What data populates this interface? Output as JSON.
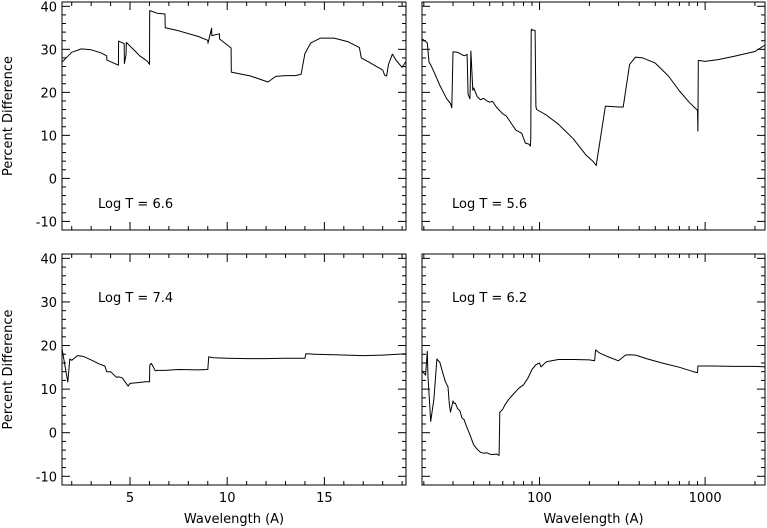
{
  "chart_data": [
    {
      "type": "line",
      "panel": "top-left",
      "annotation": "Log T = 6.6",
      "xlabel": "",
      "ylabel": "Percent Difference",
      "xscale": "linear",
      "xlim": [
        1.5,
        19.2
      ],
      "ylim": [
        -12,
        41
      ],
      "xticks": [],
      "yticks": [
        -10,
        0,
        10,
        20,
        30,
        40
      ],
      "series": [
        {
          "x": [
            1.5,
            2.0,
            2.5,
            3.0,
            3.5,
            3.8,
            3.81,
            4.4,
            4.41,
            4.7,
            4.71,
            4.8,
            4.81,
            5.3,
            5.5,
            5.9,
            6.0,
            6.01,
            6.4,
            6.8,
            6.81,
            7.5,
            8.5,
            9.0,
            9.01,
            9.2,
            9.21,
            9.6,
            9.61,
            10.2,
            10.21,
            11.2,
            12.1,
            12.5,
            13.0,
            13.5,
            13.8,
            14.0,
            14.3,
            14.8,
            15.5,
            16.2,
            16.8,
            16.9,
            17.3,
            17.8,
            18.0,
            18.1,
            18.2,
            18.3,
            18.5,
            18.7,
            19.0,
            19.2
          ],
          "y": [
            27,
            29.3,
            30.1,
            29.9,
            29.2,
            28.5,
            27.5,
            26.3,
            31.9,
            31.3,
            26.7,
            28.8,
            31.6,
            29.4,
            28.5,
            27.2,
            26.5,
            39,
            38.4,
            38.2,
            35,
            34.3,
            33.0,
            32.1,
            31.4,
            34.9,
            33.2,
            33.6,
            32.4,
            30.3,
            24.7,
            23.8,
            22.4,
            23.7,
            23.9,
            23.9,
            24.2,
            29,
            31.5,
            32.6,
            32.6,
            31.8,
            30.4,
            28.0,
            27.0,
            25.7,
            25.2,
            24.0,
            23.8,
            26.5,
            28.9,
            27.4,
            25.8,
            27.2
          ]
        }
      ]
    },
    {
      "type": "line",
      "panel": "top-right",
      "annotation": "Log T = 5.6",
      "xlabel": "",
      "ylabel": "",
      "xscale": "log",
      "xlim": [
        19.5,
        2300
      ],
      "ylim": [
        -12,
        41
      ],
      "xticks": [],
      "yticks": [],
      "series": [
        {
          "x": [
            19.5,
            20.5,
            21.0,
            21.5,
            22.0,
            23.0,
            25.0,
            27.5,
            29.0,
            29.5,
            30.0,
            32.0,
            35.0,
            36.5,
            37.0,
            38.0,
            38.5,
            39.5,
            40.0,
            42.0,
            44.0,
            46.0,
            48.0,
            50.0,
            52.0,
            55.0,
            60.0,
            63.0,
            67.0,
            72.0,
            78.0,
            82.0,
            86.0,
            88.0,
            88.5,
            89.0,
            89.5,
            90.0,
            94.0,
            95.0,
            96.0,
            110.0,
            130.0,
            160.0,
            190.0,
            210.0,
            220.0,
            250.0,
            300.0,
            320.0,
            350.0,
            380.0,
            420.0,
            500.0,
            600.0,
            700.0,
            800.0,
            900.0,
            905.0,
            910.0,
            920.0,
            1000.0,
            1200.0,
            1500.0,
            2000.0,
            2300.0
          ],
          "y": [
            32.5,
            31.8,
            31.5,
            27,
            26.4,
            24.8,
            21.6,
            18.5,
            17.4,
            16.4,
            29.4,
            29.3,
            28.5,
            28.8,
            19.5,
            18.5,
            29.6,
            20.5,
            21.0,
            19.0,
            18.3,
            18.6,
            18.0,
            17.7,
            17.9,
            16.5,
            15.0,
            14.5,
            13.0,
            11.2,
            10.5,
            8.2,
            8.0,
            7.5,
            9.5,
            34.5,
            34.7,
            34.5,
            34.4,
            16.7,
            16.0,
            14.7,
            12.6,
            9.2,
            5.5,
            4.0,
            3.0,
            16.8,
            16.6,
            16.6,
            26.5,
            28.2,
            28.0,
            26.8,
            23.8,
            20.3,
            17.7,
            15.8,
            11.0,
            27.4,
            27.4,
            27.2,
            27.6,
            28.4,
            29.5,
            31.0
          ]
        }
      ]
    },
    {
      "type": "line",
      "panel": "bottom-left",
      "annotation": "Log T = 7.4",
      "xlabel": "Wavelength (A)",
      "ylabel": "Percent Difference",
      "xscale": "linear",
      "xlim": [
        1.5,
        19.2
      ],
      "ylim": [
        -12,
        41
      ],
      "xticks": [
        5,
        10,
        15
      ],
      "yticks": [
        -10,
        0,
        10,
        20,
        30,
        40
      ],
      "series": [
        {
          "x": [
            1.5,
            1.8,
            1.9,
            2.0,
            2.3,
            2.6,
            3.0,
            3.4,
            3.7,
            3.8,
            4.0,
            4.3,
            4.4,
            4.5,
            4.6,
            4.9,
            5.0,
            5.4,
            5.8,
            6.0,
            6.02,
            6.1,
            6.3,
            6.4,
            6.8,
            7.5,
            8.5,
            9.0,
            9.05,
            9.3,
            10.0,
            11.0,
            12.0,
            13.0,
            14.0,
            14.05,
            14.5,
            15.5,
            17.0,
            18.0,
            19.2
          ],
          "y": [
            19.3,
            11.6,
            16.9,
            16.6,
            17.7,
            17.5,
            16.7,
            15.8,
            15.3,
            14.0,
            14.0,
            12.7,
            12.8,
            12.7,
            12.6,
            10.7,
            11.3,
            11.5,
            11.7,
            11.7,
            15.5,
            15.9,
            14.2,
            14.3,
            14.3,
            14.5,
            14.4,
            14.5,
            17.4,
            17.2,
            17.1,
            17.0,
            17.0,
            17.1,
            17.1,
            18.1,
            18.0,
            17.9,
            17.7,
            17.8,
            18.1
          ]
        }
      ]
    },
    {
      "type": "line",
      "panel": "bottom-right",
      "annotation": "Log T = 6.2",
      "xlabel": "Wavelength (A)",
      "ylabel": "",
      "xscale": "log",
      "xlim": [
        19.5,
        2300
      ],
      "ylim": [
        -12,
        41
      ],
      "xticks": [
        100,
        1000
      ],
      "xticklabels": [
        "100",
        "1000"
      ],
      "yticks": [],
      "series": [
        {
          "x": [
            19.5,
            20.5,
            21.0,
            21.2,
            22.0,
            23.0,
            24.0,
            25.0,
            26.0,
            27.0,
            28.0,
            28.5,
            29.0,
            29.5,
            30.0,
            30.5,
            31.0,
            32.0,
            33.0,
            34.0,
            35.0,
            36.0,
            38.0,
            40.0,
            42.0,
            44.0,
            46.0,
            48.0,
            50.0,
            52.0,
            55.0,
            57.0,
            57.5,
            58.0,
            60.0,
            62.0,
            65.0,
            70.0,
            75.0,
            80.0,
            85.0,
            90.0,
            95.0,
            100.0,
            102.0,
            110.0,
            130.0,
            160.0,
            200.0,
            215.0,
            218.0,
            230.0,
            260.0,
            300.0,
            330.0,
            350.0,
            380.0,
            450.0,
            550.0,
            700.0,
            850.0,
            900.0,
            905.0,
            950.0,
            1100.0,
            1500.0,
            2000.0,
            2300.0
          ],
          "y": [
            14.2,
            13.2,
            18.7,
            12.8,
            2.6,
            7.7,
            16.9,
            16.1,
            13.8,
            11.7,
            10.5,
            6.6,
            4.7,
            6.0,
            7.3,
            6.7,
            6.8,
            5.5,
            5.1,
            3.4,
            3.0,
            1.7,
            -0.5,
            -2.8,
            -3.8,
            -4.5,
            -4.7,
            -4.6,
            -4.9,
            -5.0,
            -4.9,
            -5.2,
            4.7,
            4.8,
            5.4,
            6.5,
            7.6,
            9.0,
            10.2,
            11.0,
            12.5,
            14.5,
            15.6,
            16.0,
            15.1,
            16.3,
            16.8,
            16.8,
            16.7,
            16.5,
            19.0,
            18.3,
            17.4,
            16.5,
            17.8,
            17.9,
            17.8,
            16.9,
            16.0,
            15.0,
            14.0,
            13.8,
            15.3,
            15.3,
            15.3,
            15.2,
            15.2,
            15.1
          ]
        }
      ]
    }
  ]
}
